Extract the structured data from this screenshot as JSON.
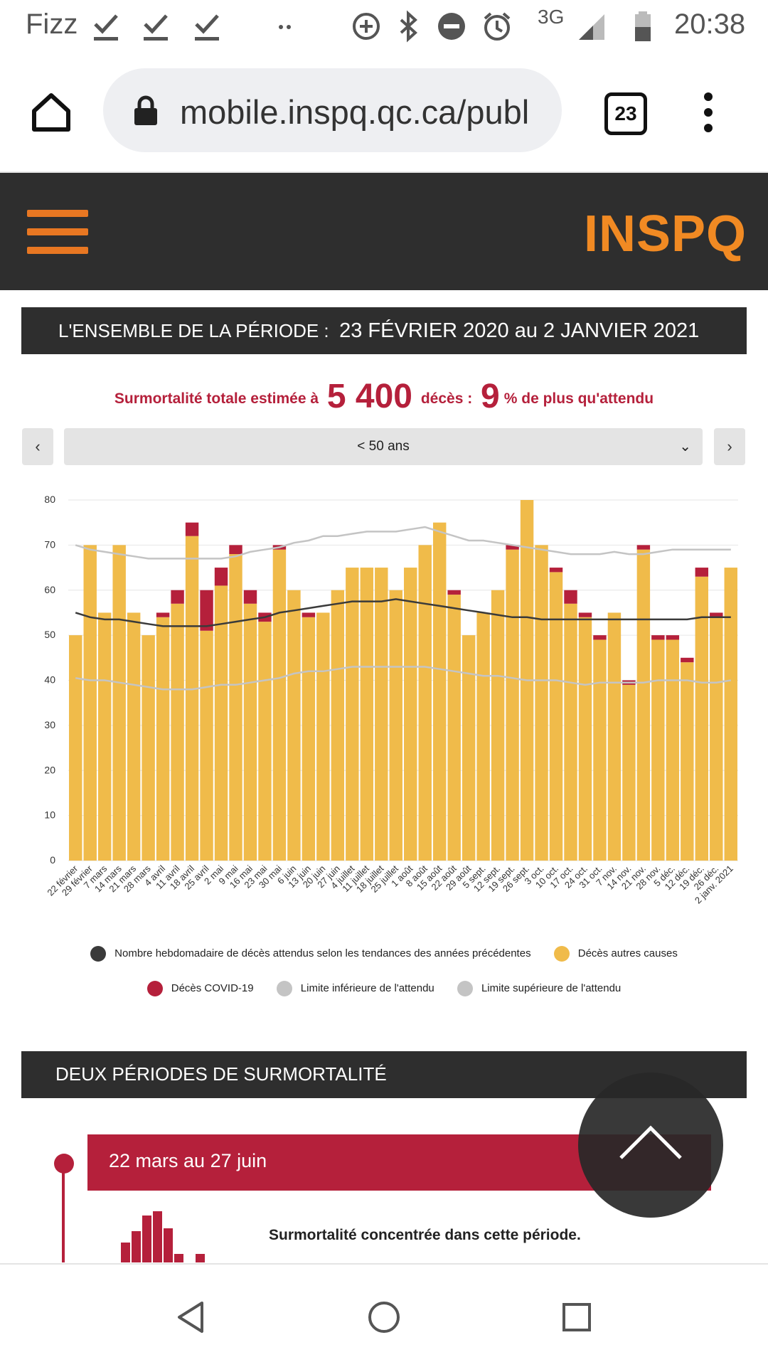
{
  "status_bar": {
    "carrier": "Fizz",
    "network": "3G",
    "time": "20:38",
    "icons": [
      "check-icon",
      "check-icon",
      "check-icon",
      "dots-icon",
      "data-saver-icon",
      "bluetooth-icon",
      "do-not-disturb-icon",
      "alarm-icon",
      "signal-icon",
      "battery-icon"
    ]
  },
  "browser": {
    "url": "mobile.inspq.qc.ca/publ",
    "tab_count": "23"
  },
  "site": {
    "logo": "INSPQ",
    "accent_color": "#f18a23"
  },
  "section1": {
    "title": "L'ENSEMBLE DE LA PÉRIODE :",
    "dates": "23 FÉVRIER 2020 au 2 JANVIER 2021"
  },
  "summary": {
    "prefix": "Surmortalité totale estimée à",
    "deaths": "5 400",
    "deaths_unit": "décès :",
    "percent": "9",
    "suffix": "% de plus qu'attendu"
  },
  "selector": {
    "prev_label": "‹",
    "value": "< 50 ans",
    "next_label": "›"
  },
  "chart_data": {
    "type": "bar",
    "stacked": true,
    "ylim": [
      0,
      80
    ],
    "yticks": [
      0,
      10,
      20,
      30,
      40,
      50,
      60,
      70,
      80
    ],
    "grid": true,
    "categories": [
      "22 février",
      "29 février",
      "7 mars",
      "14 mars",
      "21 mars",
      "28 mars",
      "4 avril",
      "11 avril",
      "18 avril",
      "25 avril",
      "2 mai",
      "9 mai",
      "16 mai",
      "23 mai",
      "30 mai",
      "6 juin",
      "13 juin",
      "20 juin",
      "27 juin",
      "4 juillet",
      "11 juillet",
      "18 juillet",
      "25 juillet",
      "1 août",
      "8 août",
      "15 août",
      "22 août",
      "29 août",
      "5 sept.",
      "12 sept.",
      "19 sept.",
      "26 sept.",
      "3 oct.",
      "10 oct.",
      "17 oct.",
      "24 oct.",
      "31 oct.",
      "7 nov.",
      "14 nov.",
      "21 nov.",
      "28 nov.",
      "5 déc.",
      "12 déc.",
      "19 déc.",
      "26 déc.",
      "2 janv. 2021"
    ],
    "series": [
      {
        "name": "Décès autres causes",
        "color": "#f0bb4a",
        "values": [
          50,
          70,
          55,
          70,
          55,
          50,
          54,
          57,
          72,
          51,
          61,
          68,
          57,
          53,
          69,
          60,
          54,
          55,
          60,
          65,
          65,
          65,
          60,
          65,
          70,
          75,
          59,
          50,
          55,
          60,
          69,
          80,
          70,
          64,
          57,
          54,
          49,
          55,
          39,
          69,
          49,
          49,
          44,
          63,
          54,
          65
        ]
      },
      {
        "name": "Décès COVID-19",
        "color": "#b5203b",
        "values": [
          0,
          0,
          0,
          0,
          0,
          0,
          1,
          3,
          3,
          9,
          4,
          2,
          3,
          2,
          1,
          0,
          1,
          0,
          0,
          0,
          0,
          0,
          0,
          0,
          0,
          0,
          1,
          0,
          0,
          0,
          1,
          0,
          0,
          1,
          3,
          1,
          1,
          0,
          1,
          1,
          1,
          1,
          1,
          2,
          1,
          0
        ]
      }
    ],
    "lines": [
      {
        "name": "Nombre hebdomadaire de décès attendus selon les tendances des années précédentes",
        "color": "#3a3a3a",
        "values": [
          55,
          54,
          53.5,
          53.5,
          53,
          52.5,
          52,
          52,
          52,
          52,
          52.5,
          53,
          53.5,
          54,
          55,
          55.5,
          56,
          56.5,
          57,
          57.5,
          57.5,
          57.5,
          58,
          57.5,
          57,
          56.5,
          56,
          55.5,
          55,
          54.5,
          54,
          54,
          53.5,
          53.5,
          53.5,
          53.5,
          53.5,
          53.5,
          53.5,
          53.5,
          53.5,
          53.5,
          53.5,
          54,
          54,
          54
        ]
      },
      {
        "name": "Limite inférieure de l'attendu",
        "color": "#c4c4c4",
        "values": [
          40.5,
          40,
          40,
          39.5,
          39,
          38.5,
          38,
          38,
          38,
          38.5,
          39,
          39,
          39.5,
          40,
          40.5,
          41.5,
          42,
          42,
          42.5,
          43,
          43,
          43,
          43,
          43,
          43,
          42.5,
          42,
          41.5,
          41,
          41,
          40.5,
          40,
          40,
          40,
          39.5,
          39,
          39.5,
          39.5,
          39.5,
          39.5,
          40,
          40,
          40,
          39.5,
          39.5,
          40
        ]
      },
      {
        "name": "Limite supérieure de l'attendu",
        "color": "#c4c4c4",
        "values": [
          70,
          69,
          68.5,
          68,
          67.5,
          67,
          67,
          67,
          67,
          67,
          67,
          67.5,
          68.5,
          69,
          69.5,
          70.5,
          71,
          72,
          72,
          72.5,
          73,
          73,
          73,
          73.5,
          74,
          73,
          72,
          71,
          71,
          70.5,
          70,
          69.5,
          69,
          68.5,
          68,
          68,
          68,
          68.5,
          68,
          68,
          68.5,
          69,
          69,
          69,
          69,
          69
        ]
      }
    ]
  },
  "legend": [
    {
      "label": "Nombre hebdomadaire de décès attendus selon les tendances des années précédentes",
      "color": "#3a3a3a"
    },
    {
      "label": "Décès autres causes",
      "color": "#f0bb4a"
    },
    {
      "label": "Décès COVID-19",
      "color": "#b5203b"
    },
    {
      "label": "Limite inférieure de l'attendu",
      "color": "#c4c4c4"
    },
    {
      "label": "Limite supérieure de l'attendu",
      "color": "#c4c4c4"
    }
  ],
  "section2": {
    "title": "DEUX PÉRIODES DE SURMORTALITÉ"
  },
  "timeline": {
    "period_label": "22 mars au 27 juin",
    "description": "Surmortalité concentrée dans cette période."
  }
}
